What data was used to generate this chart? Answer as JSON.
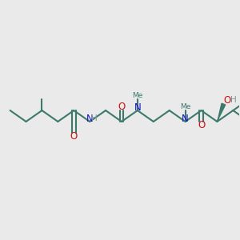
{
  "background_color": "#eaeaea",
  "bond_color": "#3d7a6c",
  "bond_width": 1.5,
  "N_color": "#1414cc",
  "O_color": "#cc1010",
  "H_color": "#7a9a96",
  "figsize": [
    3.0,
    3.0
  ],
  "dpi": 100,
  "xlim": [
    0,
    300
  ],
  "ylim": [
    0,
    300
  ]
}
